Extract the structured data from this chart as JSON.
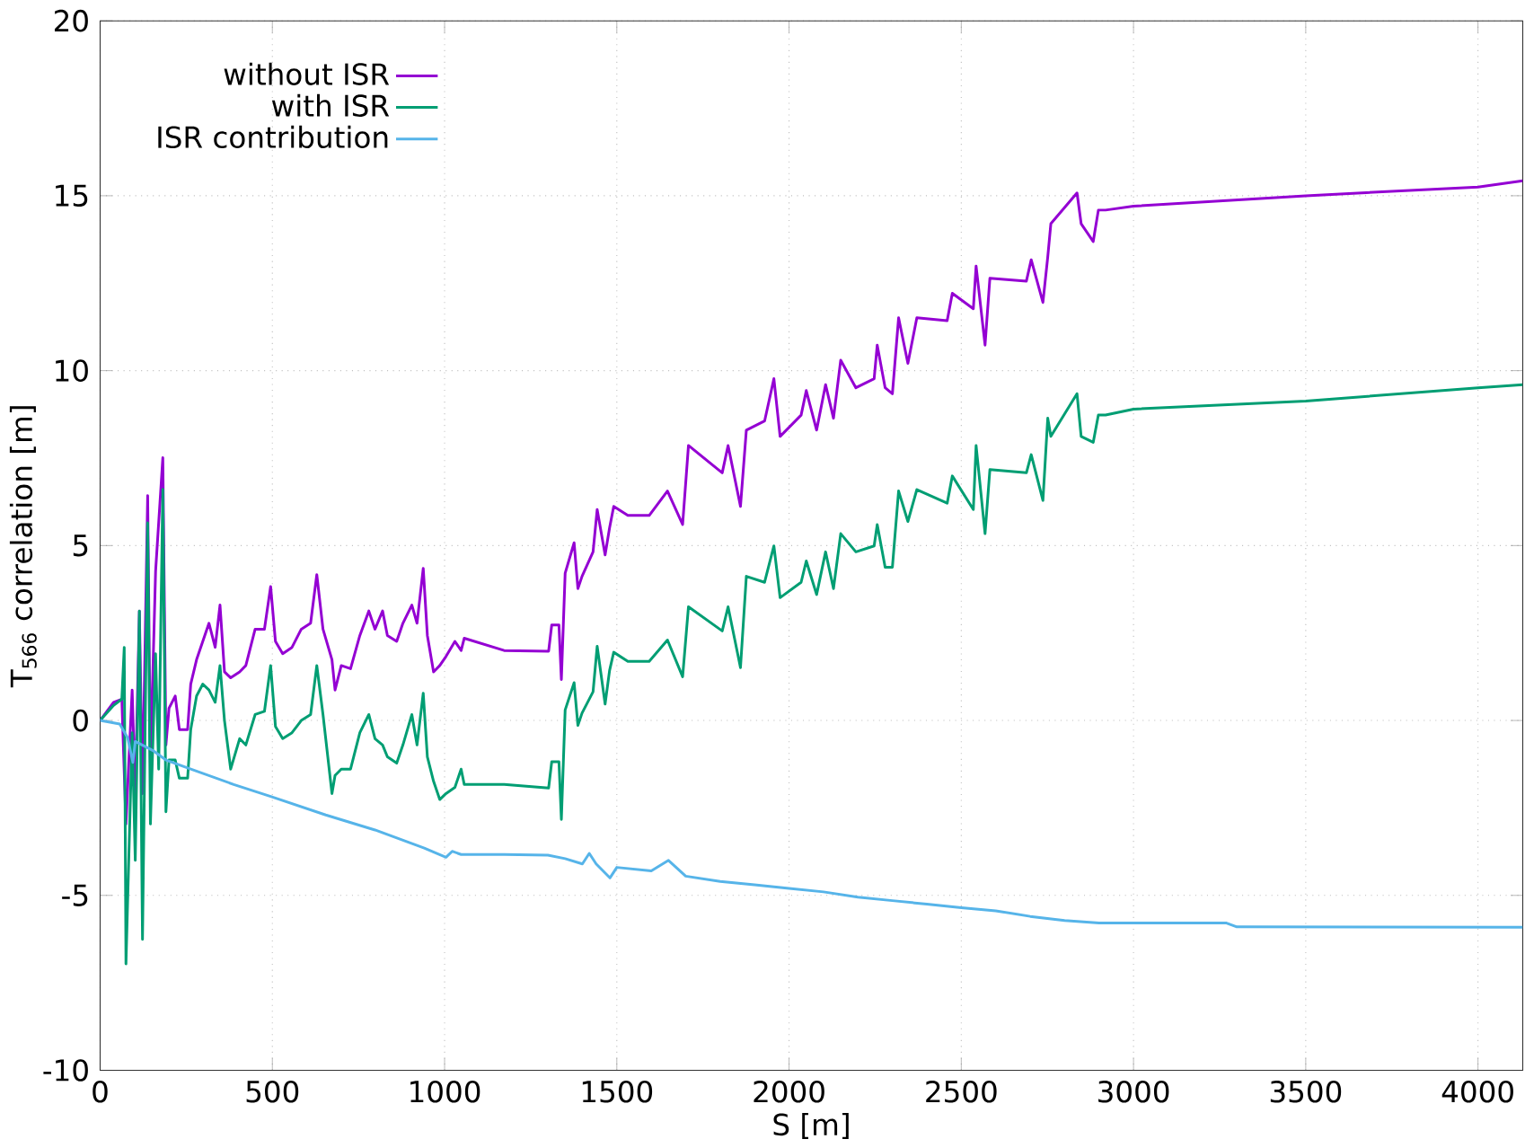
{
  "chart_data": {
    "type": "line",
    "xlabel": "S [m]",
    "ylabel": "T$_{566}$ correlation [m]",
    "xlim": [
      0,
      4130
    ],
    "ylim": [
      -10,
      20
    ],
    "xticks": [
      0,
      500,
      1000,
      1500,
      2000,
      2500,
      3000,
      3500,
      4000
    ],
    "yticks": [
      -10,
      -5,
      0,
      5,
      10,
      15,
      20
    ],
    "grid": true,
    "legend": "top left",
    "series": [
      {
        "name": "without ISR",
        "color": "#9400d3",
        "x": [
          0,
          39,
          63,
          75,
          93,
          102,
          114,
          123,
          138,
          146,
          161,
          170,
          182,
          191,
          200,
          218,
          230,
          254,
          263,
          280,
          298,
          316,
          334,
          348,
          361,
          379,
          405,
          423,
          450,
          477,
          495,
          509,
          530,
          557,
          584,
          611,
          629,
          647,
          673,
          682,
          700,
          727,
          754,
          780,
          798,
          820,
          834,
          861,
          879,
          905,
          920,
          938,
          950,
          968,
          986,
          1004,
          1030,
          1048,
          1057,
          1173,
          1302,
          1311,
          1332,
          1339,
          1350,
          1376,
          1387,
          1399,
          1431,
          1443,
          1466,
          1479,
          1491,
          1532,
          1594,
          1647,
          1691,
          1708,
          1806,
          1823,
          1859,
          1876,
          1929,
          1956,
          1974,
          2035,
          2050,
          2080,
          2106,
          2129,
          2150,
          2194,
          2247,
          2256,
          2279,
          2300,
          2318,
          2345,
          2371,
          2459,
          2474,
          2535,
          2543,
          2569,
          2583,
          2689,
          2703,
          2737,
          2751,
          2760,
          2836,
          2848,
          2883,
          2898,
          2919,
          3000,
          3500,
          4000,
          4130
        ],
        "values": [
          0,
          0.52,
          0.61,
          -2.96,
          0.87,
          -2.09,
          3.13,
          -2.09,
          6.43,
          -1.22,
          4.26,
          null,
          7.51,
          -0.7,
          0.35,
          0.7,
          -0.26,
          -0.26,
          1.04,
          1.74,
          2.26,
          2.78,
          2.09,
          3.3,
          1.39,
          1.22,
          1.39,
          1.57,
          2.61,
          2.61,
          3.83,
          2.26,
          1.91,
          2.09,
          2.61,
          2.78,
          4.17,
          2.61,
          1.74,
          0.87,
          1.57,
          1.48,
          2.43,
          3.13,
          2.61,
          3.13,
          2.43,
          2.26,
          2.78,
          3.3,
          2.78,
          4.35,
          2.43,
          1.39,
          1.57,
          1.83,
          2.26,
          2.0,
          2.35,
          2.0,
          1.98,
          2.73,
          2.73,
          1.17,
          4.21,
          5.08,
          3.77,
          4.12,
          4.82,
          6.03,
          4.73,
          5.51,
          6.12,
          5.86,
          5.86,
          6.56,
          5.6,
          7.86,
          7.08,
          7.86,
          6.12,
          8.3,
          8.56,
          9.77,
          8.12,
          8.73,
          9.43,
          8.3,
          9.6,
          8.64,
          10.3,
          9.51,
          9.77,
          10.73,
          9.51,
          9.34,
          11.51,
          10.21,
          11.51,
          11.43,
          12.21,
          11.77,
          12.99,
          10.73,
          12.64,
          12.56,
          13.17,
          11.95,
          13.25,
          14.2,
          15.08,
          14.2,
          13.69,
          14.59,
          14.59,
          14.7,
          15.0,
          15.25,
          15.43
        ]
      },
      {
        "name": "with ISR",
        "color": "#009e73",
        "x": [
          0,
          39,
          63,
          70,
          75,
          93,
          102,
          114,
          123,
          138,
          146,
          161,
          170,
          182,
          191,
          200,
          218,
          230,
          254,
          263,
          280,
          298,
          316,
          334,
          348,
          361,
          379,
          405,
          423,
          450,
          477,
          495,
          509,
          530,
          557,
          584,
          611,
          629,
          647,
          673,
          682,
          700,
          727,
          754,
          780,
          798,
          820,
          834,
          861,
          879,
          905,
          920,
          938,
          950,
          968,
          986,
          1004,
          1030,
          1048,
          1057,
          1173,
          1302,
          1311,
          1332,
          1339,
          1350,
          1376,
          1387,
          1399,
          1431,
          1443,
          1466,
          1479,
          1491,
          1532,
          1594,
          1647,
          1691,
          1708,
          1806,
          1823,
          1859,
          1876,
          1929,
          1956,
          1974,
          2035,
          2050,
          2080,
          2106,
          2129,
          2150,
          2194,
          2247,
          2256,
          2279,
          2300,
          2318,
          2345,
          2371,
          2459,
          2474,
          2535,
          2543,
          2569,
          2583,
          2689,
          2703,
          2737,
          2751,
          2760,
          2836,
          2848,
          2883,
          2898,
          2919,
          3000,
          3500,
          4000,
          4130
        ],
        "values": [
          0,
          0.43,
          0.61,
          2.09,
          -6.96,
          -0.35,
          -4.0,
          3.13,
          -6.26,
          5.65,
          -2.96,
          1.91,
          -1.39,
          6.61,
          -2.61,
          -1.13,
          -1.13,
          -1.65,
          -1.65,
          -0.26,
          0.7,
          1.04,
          0.87,
          0.52,
          1.57,
          0,
          -1.39,
          -0.52,
          -0.7,
          0.17,
          0.26,
          1.57,
          -0.17,
          -0.52,
          -0.35,
          0,
          0.17,
          1.57,
          0.17,
          -2.09,
          -1.57,
          -1.39,
          -1.39,
          -0.35,
          0.17,
          -0.52,
          -0.7,
          -1.04,
          -1.22,
          -0.7,
          0.17,
          -0.7,
          0.78,
          -1.04,
          -1.74,
          -2.26,
          -2.09,
          -1.91,
          -1.39,
          -1.83,
          -1.83,
          -1.93,
          -1.18,
          -1.18,
          -2.83,
          0.3,
          1.08,
          -0.14,
          0.21,
          0.82,
          2.12,
          0.47,
          1.43,
          1.95,
          1.69,
          1.69,
          2.3,
          1.25,
          3.25,
          2.56,
          3.25,
          1.51,
          4.12,
          3.95,
          4.99,
          3.51,
          3.95,
          4.56,
          3.6,
          4.82,
          3.77,
          5.34,
          4.82,
          4.99,
          5.6,
          4.38,
          4.38,
          6.56,
          5.69,
          6.6,
          6.21,
          6.99,
          6.03,
          7.86,
          5.34,
          7.17,
          7.08,
          7.6,
          6.29,
          8.64,
          8.12,
          9.34,
          8.12,
          7.95,
          8.73,
          8.73,
          8.9,
          9.13,
          9.51,
          9.6
        ]
      },
      {
        "name": "ISR contribution",
        "color": "#56b4e9",
        "x": [
          0,
          57,
          80,
          95,
          102,
          155,
          191,
          263,
          388,
          495,
          655,
          798,
          941,
          1004,
          1022,
          1048,
          1173,
          1300,
          1350,
          1400,
          1420,
          1440,
          1480,
          1500,
          1600,
          1650,
          1700,
          1800,
          1900,
          2000,
          2100,
          2200,
          2300,
          2400,
          2500,
          2600,
          2700,
          2800,
          2900,
          3270,
          3300,
          4130
        ],
        "values": [
          0,
          -0.1,
          -0.5,
          -1.2,
          -0.6,
          -0.87,
          -1.13,
          -1.39,
          -1.83,
          -2.17,
          -2.7,
          -3.13,
          -3.65,
          -3.91,
          -3.74,
          -3.83,
          -3.83,
          -3.85,
          -3.95,
          -4.1,
          -3.8,
          -4.1,
          -4.5,
          -4.2,
          -4.3,
          -4.0,
          -4.45,
          -4.6,
          -4.7,
          -4.8,
          -4.9,
          -5.05,
          -5.15,
          -5.25,
          -5.35,
          -5.44,
          -5.6,
          -5.72,
          -5.79,
          -5.79,
          -5.9,
          -5.91
        ]
      }
    ]
  }
}
